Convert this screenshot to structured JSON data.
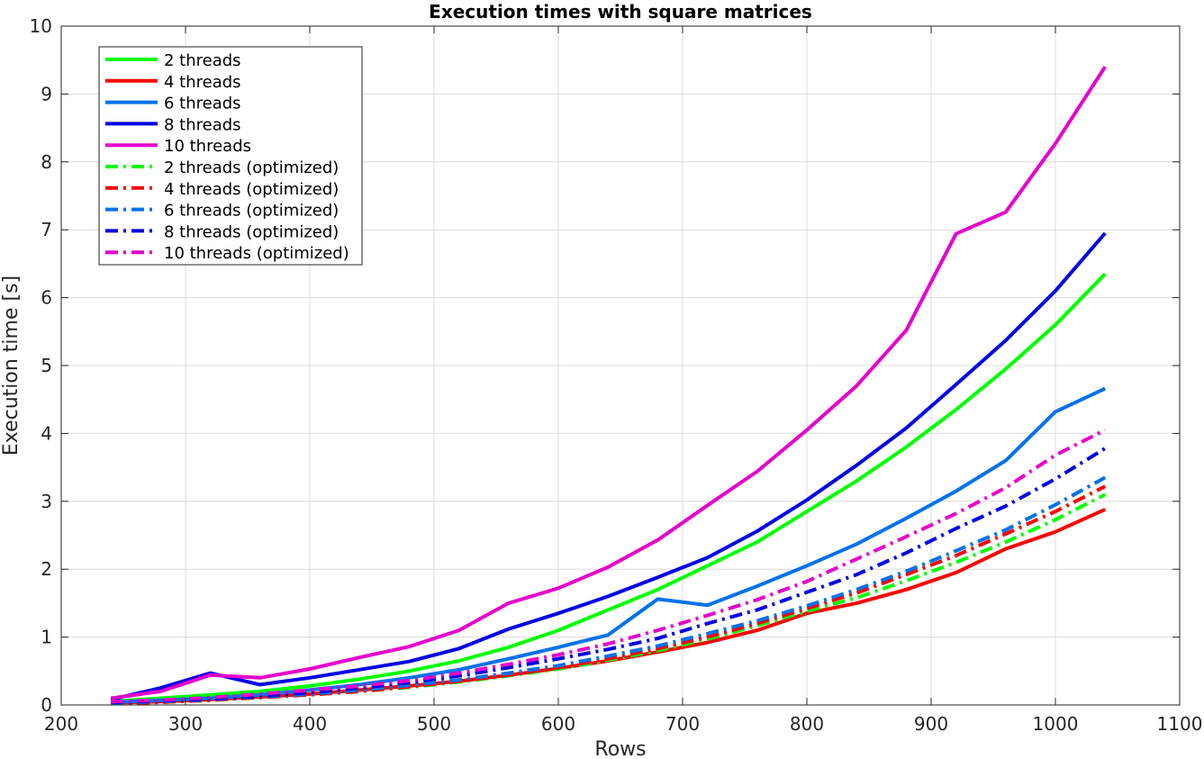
{
  "chart_data": {
    "type": "line",
    "title": "Execution times with square matrices",
    "xlabel": "Rows",
    "ylabel": "Execution time [s]",
    "xlim": [
      200,
      1100
    ],
    "ylim": [
      0,
      10
    ],
    "xticks": [
      200,
      300,
      400,
      500,
      600,
      700,
      800,
      900,
      1000,
      1100
    ],
    "yticks": [
      0,
      1,
      2,
      3,
      4,
      5,
      6,
      7,
      8,
      9,
      10
    ],
    "grid": true,
    "legend_position": "top-left",
    "x": [
      240,
      280,
      320,
      360,
      400,
      440,
      480,
      520,
      560,
      600,
      640,
      680,
      720,
      760,
      800,
      840,
      880,
      920,
      960,
      1000,
      1040
    ],
    "series": [
      {
        "name": "2 threads",
        "color": "#00ff00",
        "style": "solid",
        "values": [
          0.05,
          0.1,
          0.15,
          0.2,
          0.28,
          0.38,
          0.5,
          0.65,
          0.85,
          1.1,
          1.4,
          1.7,
          2.05,
          2.4,
          2.85,
          3.3,
          3.8,
          4.35,
          4.95,
          5.6,
          6.35
        ]
      },
      {
        "name": "4 threads",
        "color": "#ff0000",
        "style": "solid",
        "values": [
          0.03,
          0.05,
          0.08,
          0.12,
          0.16,
          0.22,
          0.28,
          0.35,
          0.44,
          0.54,
          0.65,
          0.78,
          0.92,
          1.1,
          1.35,
          1.5,
          1.7,
          1.95,
          2.3,
          2.55,
          2.88
        ]
      },
      {
        "name": "6 threads",
        "color": "#0072ea",
        "style": "solid",
        "values": [
          0.04,
          0.07,
          0.1,
          0.15,
          0.22,
          0.3,
          0.4,
          0.52,
          0.68,
          0.85,
          1.03,
          1.56,
          1.47,
          1.75,
          2.05,
          2.37,
          2.75,
          3.15,
          3.6,
          4.32,
          4.66
        ]
      },
      {
        "name": "8 threads",
        "color": "#0000e6",
        "style": "solid",
        "values": [
          0.08,
          0.25,
          0.47,
          0.3,
          0.4,
          0.52,
          0.64,
          0.83,
          1.12,
          1.35,
          1.6,
          1.88,
          2.17,
          2.56,
          3.02,
          3.53,
          4.08,
          4.72,
          5.37,
          6.1,
          6.95
        ]
      },
      {
        "name": "10 threads",
        "color": "#e600cc",
        "style": "solid",
        "values": [
          0.1,
          0.2,
          0.44,
          0.4,
          0.53,
          0.7,
          0.86,
          1.1,
          1.5,
          1.72,
          2.03,
          2.43,
          2.94,
          3.44,
          4.05,
          4.7,
          5.52,
          6.94,
          7.26,
          8.27,
          9.4
        ]
      },
      {
        "name": "2 threads (optimized)",
        "color": "#00ff00",
        "style": "dashdot",
        "values": [
          0.02,
          0.04,
          0.07,
          0.11,
          0.15,
          0.2,
          0.26,
          0.34,
          0.43,
          0.53,
          0.66,
          0.8,
          0.97,
          1.17,
          1.38,
          1.58,
          1.83,
          2.1,
          2.4,
          2.73,
          3.1
        ]
      },
      {
        "name": "4 threads (optimized)",
        "color": "#ff0000",
        "style": "dashdot",
        "values": [
          0.02,
          0.04,
          0.07,
          0.11,
          0.15,
          0.2,
          0.27,
          0.35,
          0.44,
          0.55,
          0.68,
          0.83,
          1.0,
          1.2,
          1.42,
          1.65,
          1.92,
          2.2,
          2.52,
          2.85,
          3.22
        ]
      },
      {
        "name": "6 threads (optimized)",
        "color": "#0072ea",
        "style": "dashdot",
        "values": [
          0.03,
          0.05,
          0.08,
          0.12,
          0.16,
          0.22,
          0.29,
          0.37,
          0.47,
          0.58,
          0.72,
          0.87,
          1.05,
          1.24,
          1.46,
          1.7,
          1.97,
          2.27,
          2.58,
          2.95,
          3.35
        ]
      },
      {
        "name": "8 threads (optimized)",
        "color": "#0000e6",
        "style": "dashdot",
        "values": [
          0.04,
          0.06,
          0.09,
          0.13,
          0.18,
          0.25,
          0.33,
          0.43,
          0.55,
          0.68,
          0.82,
          0.98,
          1.2,
          1.4,
          1.66,
          1.92,
          2.24,
          2.6,
          2.93,
          3.33,
          3.78
        ]
      },
      {
        "name": "10 threads (optimized)",
        "color": "#e600cc",
        "style": "dashdot",
        "values": [
          0.05,
          0.07,
          0.11,
          0.16,
          0.22,
          0.28,
          0.36,
          0.47,
          0.6,
          0.74,
          0.9,
          1.1,
          1.32,
          1.55,
          1.82,
          2.15,
          2.48,
          2.82,
          3.2,
          3.68,
          4.05
        ]
      }
    ]
  }
}
